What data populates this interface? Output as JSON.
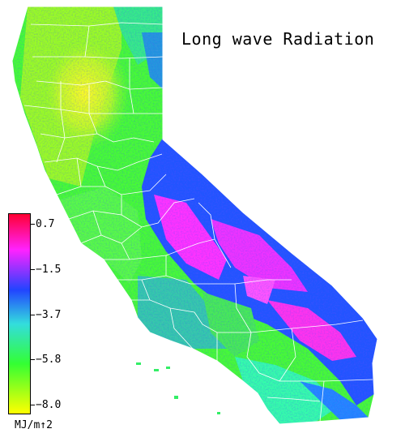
{
  "map": {
    "title": "Long wave Radiation",
    "units": "MJ/m↑2",
    "region": "California",
    "colors": {
      "background": "#ffffff",
      "county_borders": "#ffffff",
      "low_end": "#ffff00",
      "green": "#33ff33",
      "cyan": "#33dddd",
      "blue": "#2244ff",
      "magenta": "#ff22ff",
      "high_end": "#ff0033"
    },
    "legend": {
      "min": -8.0,
      "max": 0.7,
      "ticks": [
        "0.7",
        "−1.5",
        "−3.7",
        "−5.8",
        "−8.0"
      ]
    }
  }
}
